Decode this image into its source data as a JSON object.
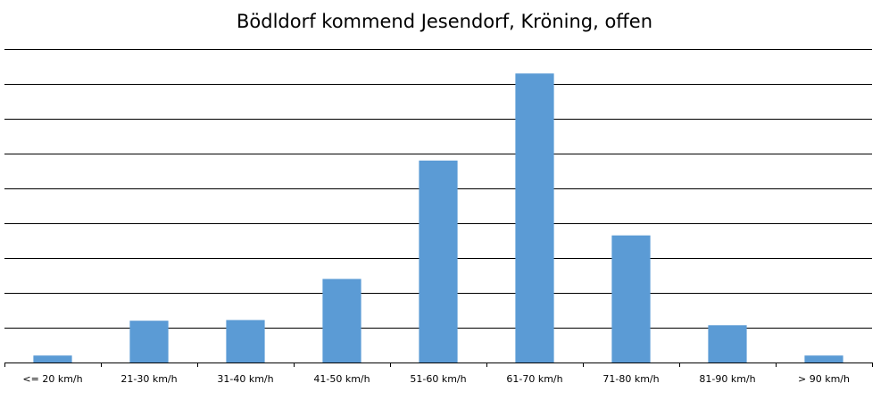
{
  "chart_data": {
    "type": "bar",
    "title": "Bödldorf kommend Jesendorf, Kröning, offen",
    "xlabel": "",
    "ylabel": "",
    "categories": [
      "<= 20 km/h",
      "21-30 km/h",
      "31-40 km/h",
      "41-50 km/h",
      "51-60 km/h",
      "61-70 km/h",
      "71-80 km/h",
      "81-90 km/h",
      "> 90 km/h"
    ],
    "values": [
      0.2,
      1.2,
      1.22,
      2.4,
      5.8,
      8.3,
      3.65,
      1.07,
      0.2
    ],
    "ylim": [
      0,
      9
    ],
    "grid": true,
    "y_tick_labels_shown": false,
    "legend": "none",
    "colors": {
      "bar": "#5b9bd5",
      "grid": "#000000",
      "axis": "#000000"
    }
  }
}
